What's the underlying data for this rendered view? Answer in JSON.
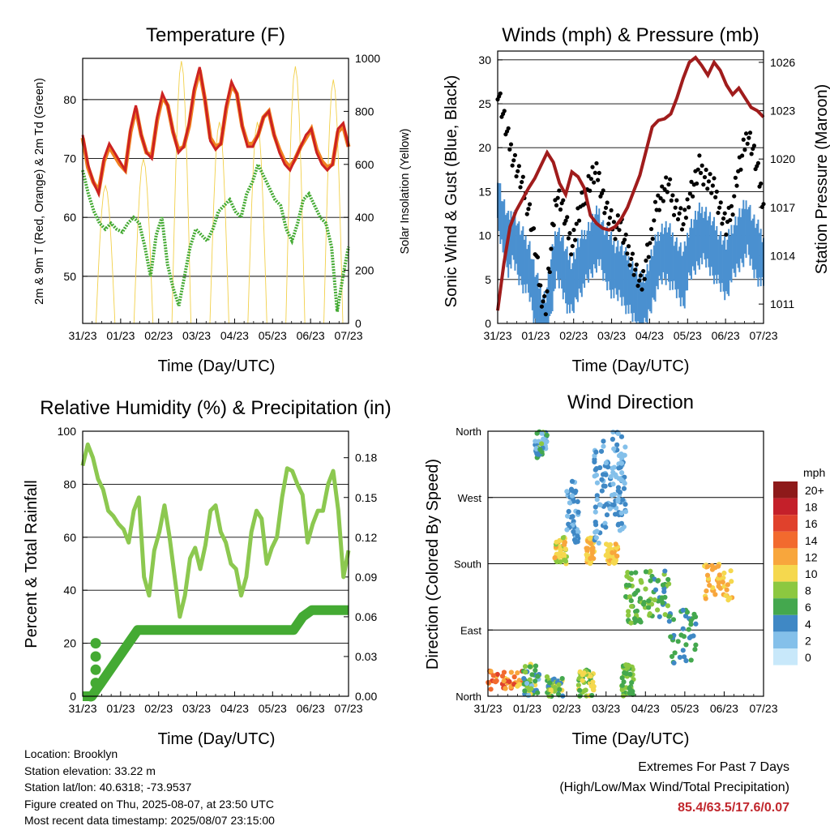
{
  "x_ticks": [
    "31/23",
    "01/23",
    "02/23",
    "03/23",
    "04/23",
    "05/23",
    "06/23",
    "07/23"
  ],
  "x_label": "Time (Day/UTC)",
  "chart_data": [
    {
      "type": "line",
      "title": "Temperature (F)",
      "xlabel": "Time (Day/UTC)",
      "ylabel": "2m & 9m T (Red, Orange) & 2m Td (Green)",
      "ylabel_right": "Solar Insolation (Yellow)",
      "ylim": [
        42,
        87
      ],
      "yticks": [
        50,
        60,
        70,
        80
      ],
      "ylim_right": [
        0,
        1000
      ],
      "yticks_right": [
        0,
        200,
        400,
        600,
        800,
        1000
      ],
      "x_day_index": [
        0,
        0.1,
        0.2,
        0.3,
        0.4,
        0.5,
        0.6,
        0.7,
        0.8,
        0.9,
        1.0,
        1.1,
        1.2,
        1.3,
        1.4,
        1.5,
        1.6,
        1.7,
        1.8,
        1.9,
        2.0,
        2.1,
        2.2,
        2.3,
        2.4,
        2.5,
        2.6,
        2.7,
        2.8,
        2.9,
        3.0,
        3.1,
        3.2,
        3.3,
        3.4,
        3.5,
        3.6,
        3.7,
        3.8,
        3.9,
        4.0,
        4.1,
        4.2,
        4.3,
        4.4,
        4.5,
        4.6,
        4.7,
        4.8,
        4.9,
        5.0,
        5.1,
        5.2,
        5.3,
        5.4,
        5.5,
        5.6,
        5.7,
        5.8,
        5.9,
        6.0,
        6.1,
        6.2,
        6.3,
        6.4,
        6.5,
        6.6,
        6.7,
        6.8,
        6.9,
        7.0
      ],
      "series": [
        {
          "name": "2m T",
          "color": "#cc2222",
          "values": [
            74,
            69,
            66,
            64,
            70,
            72.5,
            71,
            69.5,
            68,
            75,
            79,
            74,
            71,
            70,
            77,
            81,
            79,
            74.5,
            71,
            72,
            76,
            82,
            85.5,
            80,
            73,
            71.5,
            72.5,
            79,
            83,
            81,
            75.5,
            72,
            72,
            74,
            77,
            78,
            74,
            71,
            69,
            68,
            70,
            72,
            74,
            75,
            71,
            69,
            68,
            69,
            75,
            76,
            72
          ]
        },
        {
          "name": "9m T",
          "color": "#f08020",
          "values": [
            73.5,
            68.5,
            66,
            64.5,
            69.5,
            72,
            70.5,
            69,
            68,
            74.5,
            78.5,
            74,
            71,
            70.5,
            76.5,
            80.5,
            79,
            74.5,
            71.5,
            72,
            75.5,
            81.5,
            85,
            80,
            73.5,
            72,
            72.5,
            78.5,
            82.5,
            81,
            75.5,
            72.5,
            72.5,
            74,
            77,
            78,
            74,
            71.5,
            69.5,
            68.5,
            70,
            72,
            73.5,
            75,
            71.5,
            69.5,
            68.5,
            69,
            74.5,
            75.5,
            72
          ]
        },
        {
          "name": "2m Td",
          "color": "#44aa33",
          "values": [
            68,
            64,
            61,
            59,
            58,
            59,
            58,
            57.5,
            59,
            60,
            59,
            55,
            50,
            57,
            60,
            52,
            48,
            45,
            50,
            55,
            58,
            57,
            56,
            58,
            61,
            62,
            63,
            61,
            60,
            64,
            66,
            69,
            67,
            65,
            63,
            62,
            58,
            56,
            59,
            63,
            64,
            62,
            60,
            59,
            55,
            44,
            50,
            55
          ]
        },
        {
          "name": "Solar",
          "color": "#f2d04a",
          "axis": "right",
          "values": []
        }
      ]
    },
    {
      "type": "line",
      "title": "Winds (mph) & Pressure (mb)",
      "xlabel": "Time (Day/UTC)",
      "ylabel": "Sonic Wind & Gust (Blue, Black)",
      "ylabel_right": "Station Pressure (Maroon)",
      "ylim": [
        0,
        31
      ],
      "yticks": [
        0,
        5,
        10,
        15,
        20,
        25,
        30
      ],
      "ylim_right": [
        1009.8,
        1026.7
      ],
      "yticks_right": [
        1011,
        1014,
        1017,
        1020,
        1023,
        1026
      ],
      "series": [
        {
          "name": "Wind",
          "color": "#4a90d0",
          "values": [
            15,
            12,
            10,
            11,
            9,
            8,
            7,
            4,
            2,
            1,
            5,
            9,
            8,
            6,
            5,
            7,
            8,
            9,
            10,
            11,
            9,
            8,
            7,
            7,
            6,
            5,
            4,
            3,
            4,
            6,
            8,
            9,
            9,
            8,
            7,
            6,
            9,
            10,
            11,
            11,
            10,
            9,
            8,
            7,
            9,
            10,
            11,
            12,
            10,
            9,
            8
          ]
        },
        {
          "name": "Gust",
          "color": "#000000",
          "values": [
            27,
            24,
            21,
            19,
            17,
            15,
            13,
            9,
            4,
            2,
            8,
            15,
            14,
            11,
            9,
            12,
            14,
            16,
            17,
            17,
            14,
            12,
            11,
            12,
            9,
            8,
            6,
            4,
            8,
            10,
            14,
            15,
            16,
            14,
            13,
            11,
            15,
            16,
            18,
            17,
            16,
            15,
            13,
            11,
            13,
            17,
            19,
            22,
            20,
            17,
            14
          ]
        },
        {
          "name": "Pressure",
          "color": "#a01c1c",
          "axis": "right",
          "values": [
            1010.6,
            1013.5,
            1015.8,
            1016.8,
            1017.5,
            1018.2,
            1018.8,
            1019.6,
            1020.4,
            1019.8,
            1018.5,
            1017.8,
            1019.2,
            1018.9,
            1018.2,
            1016.5,
            1016.0,
            1015.7,
            1015.6,
            1015.8,
            1016.3,
            1017.0,
            1018.0,
            1019.0,
            1020.5,
            1022.0,
            1022.4,
            1022.5,
            1022.8,
            1023.8,
            1025.0,
            1026.0,
            1026.3,
            1025.8,
            1025.2,
            1026.0,
            1025.5,
            1024.6,
            1024.0,
            1024.4,
            1023.8,
            1023.2,
            1023.0,
            1022.6
          ]
        }
      ]
    },
    {
      "type": "line",
      "title": "Relative Humidity (%) & Precipitation (in)",
      "xlabel": "Time (Day/UTC)",
      "ylabel": "Percent & Total Rainfall",
      "ylim": [
        0,
        100
      ],
      "yticks": [
        0,
        20,
        40,
        60,
        80,
        100
      ],
      "ylim_right": [
        0,
        0.2
      ],
      "yticks_right": [
        "0.00",
        "0.03",
        "0.06",
        "0.09",
        "0.12",
        "0.15",
        "0.18"
      ],
      "series": [
        {
          "name": "RH",
          "color": "#8cc850",
          "values": [
            87,
            95,
            90,
            82,
            78,
            70,
            68,
            65,
            63,
            58,
            70,
            75,
            45,
            38,
            55,
            62,
            72,
            60,
            45,
            30,
            38,
            52,
            56,
            48,
            57,
            70,
            72,
            62,
            58,
            50,
            48,
            38,
            45,
            62,
            70,
            67,
            50,
            56,
            60,
            75,
            86,
            85,
            80,
            76,
            58,
            65,
            70,
            70,
            80,
            85,
            70,
            45,
            55
          ]
        },
        {
          "name": "Precip",
          "color": "#44aa33",
          "axis": "right",
          "values": [
            0,
            0,
            0.01,
            0.02,
            0.03,
            0.04,
            0.05,
            0.05,
            0.05,
            0.05,
            0.05,
            0.05,
            0.05,
            0.05,
            0.05,
            0.05,
            0.05,
            0.05,
            0.05,
            0.05,
            0.05,
            0.05,
            0.05,
            0.05,
            0.06,
            0.065,
            0.065,
            0.065,
            0.065,
            0.065
          ]
        }
      ]
    },
    {
      "type": "scatter",
      "title": "Wind Direction",
      "xlabel": "Time (Day/UTC)",
      "ylabel": "Direction (Colored By Speed)",
      "yticks": [
        "North",
        "East",
        "South",
        "West",
        "North"
      ],
      "colorbar_unit": "mph",
      "colorbar_labels": [
        "20+",
        "18",
        "16",
        "14",
        "12",
        "10",
        "8",
        "6",
        "4",
        "2",
        "0"
      ],
      "colorbar_colors": [
        "#8e1a1a",
        "#c4202a",
        "#e0412c",
        "#f26a2e",
        "#f8a63c",
        "#f5d84e",
        "#8cc840",
        "#44a84e",
        "#3f88c5",
        "#84c0ea",
        "#c8e8fa"
      ]
    }
  ],
  "info": {
    "location": "Location: Brooklyn",
    "elevation": "Station elevation: 33.22 m",
    "latlon": "Station lat/lon: 40.6318; -73.9537",
    "created": "Figure created on Thu, 2025-08-07, at 23:50 UTC",
    "recent": "Most recent data timestamp: 2025/08/07 23:15:00"
  },
  "extremes": {
    "line1": "Extremes For Past 7 Days",
    "line2": "(High/Low/Max Wind/Total Precipitation)",
    "values": "85.4/63.5/17.6/0.07"
  }
}
